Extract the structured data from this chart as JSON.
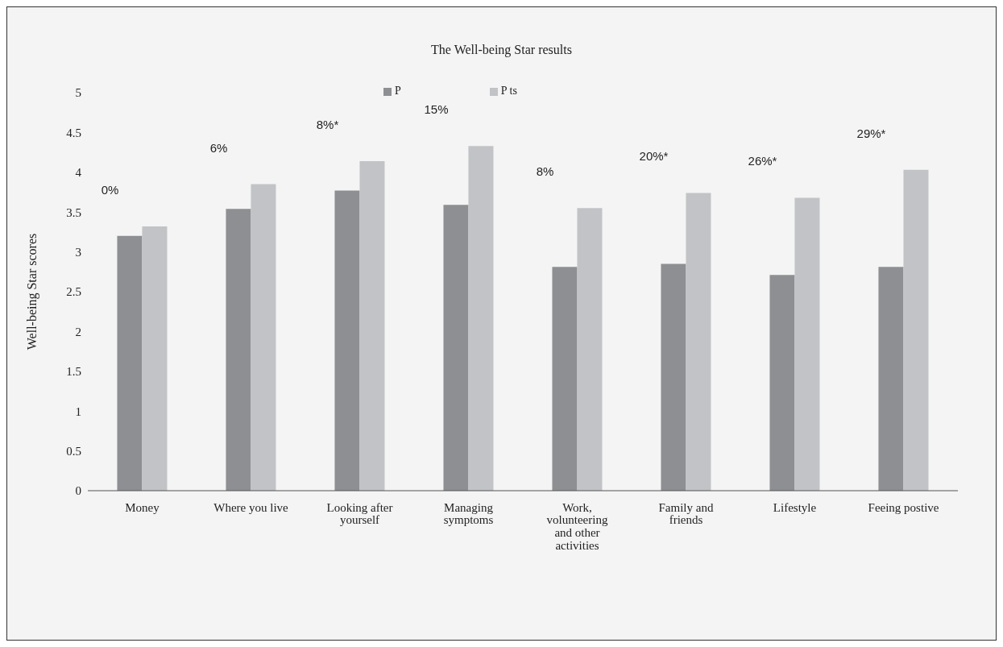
{
  "chart_data": {
    "type": "bar",
    "title": "The Well-being Star results",
    "ylabel": "Well-being Star scores",
    "categories": [
      "Money",
      "Where you live",
      "Looking after yourself",
      "Managing symptoms",
      "Work, volunteering and other activities",
      "Family  and friends",
      "Lifestyle",
      "Feeing postive"
    ],
    "series": [
      {
        "name": "P",
        "color": "#8e8f93",
        "values": [
          3.2,
          3.54,
          3.77,
          3.59,
          2.81,
          2.85,
          2.71,
          2.81
        ]
      },
      {
        "name": "P ts",
        "color": "#c2c3c6",
        "values": [
          3.32,
          3.85,
          4.14,
          4.33,
          3.55,
          3.74,
          3.68,
          4.03
        ]
      }
    ],
    "ylim": [
      0,
      5
    ],
    "yticks": [
      0,
      0.5,
      1,
      1.5,
      2,
      2.5,
      3,
      3.5,
      4,
      4.5,
      5
    ],
    "grid": false,
    "legend": "top",
    "annotations": [
      "0%",
      "6%",
      "8%*",
      "15%",
      "8%",
      "20%*",
      "26%*",
      "29%*"
    ]
  }
}
